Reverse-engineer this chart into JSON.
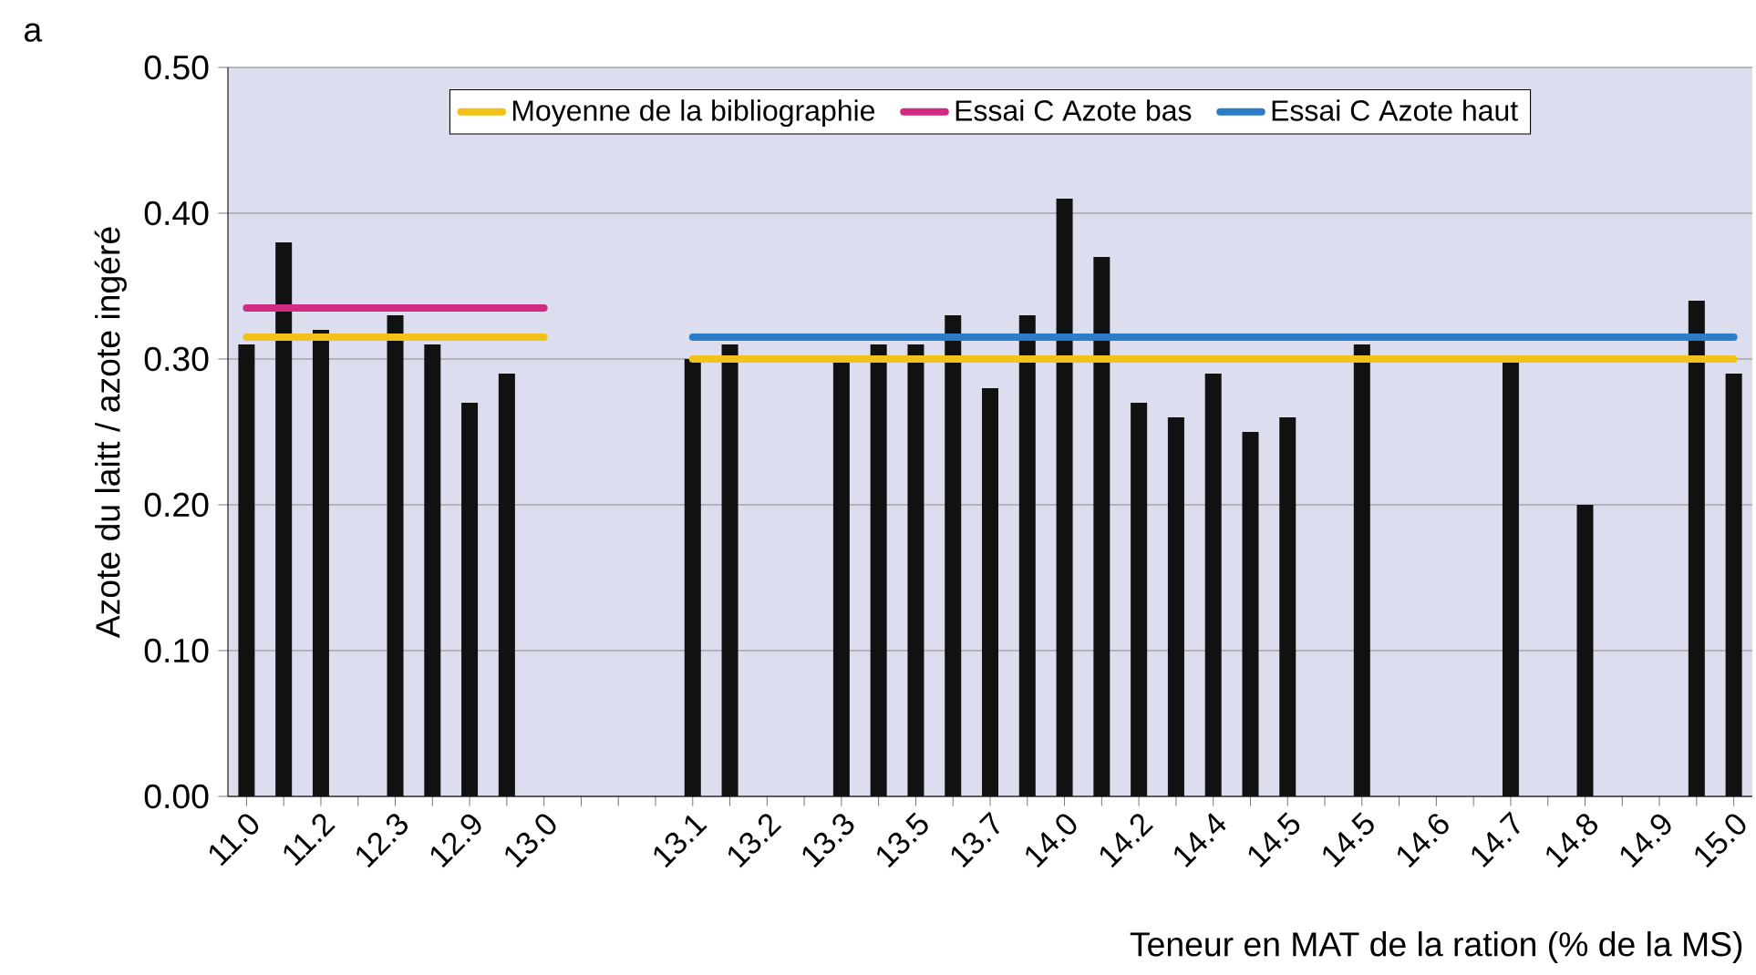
{
  "chart_data": {
    "type": "bar",
    "xlabel": "Teneur en MAT de la ration (% de la MS)",
    "ylabel": "Azote du laitt / azote ingéré",
    "annotations": [
      "a"
    ],
    "categories": [
      "11.0",
      null,
      "11.2",
      null,
      "12.3",
      null,
      "12.9",
      null,
      "13.0",
      null,
      null,
      null,
      "13.1",
      null,
      "13.2",
      null,
      "13.3",
      null,
      "13.5",
      null,
      "13.7",
      null,
      "14.0",
      null,
      "14.2",
      null,
      "14.4",
      null,
      "14.5",
      null,
      "14.5",
      null,
      "14.6",
      null,
      "14.7",
      null,
      "14.8",
      null,
      "14.9",
      null,
      "15.0"
    ],
    "series": [
      {
        "color": "#111111",
        "values": [
          0.31,
          0.38,
          0.32,
          null,
          0.33,
          0.31,
          0.27,
          0.29,
          null,
          null,
          null,
          null,
          0.3,
          0.31,
          null,
          null,
          0.3,
          0.31,
          0.31,
          0.33,
          0.28,
          0.33,
          0.41,
          0.37,
          0.27,
          0.26,
          0.29,
          0.25,
          0.26,
          null,
          0.31,
          null,
          null,
          null,
          0.3,
          null,
          0.2,
          null,
          null,
          0.34,
          0.29
        ]
      },
      {
        "type": "line",
        "name": "Moyenne de la bibliographie",
        "color": "#f2c21b",
        "values": [
          0.315,
          0.315,
          0.315,
          0.315,
          0.315,
          0.315,
          0.315,
          0.315,
          0.315,
          null,
          null,
          null,
          0.3,
          0.3,
          0.3,
          0.3,
          0.3,
          0.3,
          0.3,
          0.3,
          0.3,
          0.3,
          0.3,
          0.3,
          0.3,
          0.3,
          0.3,
          0.3,
          0.3,
          0.3,
          0.3,
          0.3,
          0.3,
          0.3,
          0.3,
          0.3,
          0.3,
          0.3,
          0.3,
          0.3,
          0.3
        ]
      },
      {
        "type": "line",
        "name": "Essai C Azote bas",
        "color": "#d12a82",
        "values": [
          0.335,
          0.335,
          0.335,
          0.335,
          0.335,
          0.335,
          0.335,
          0.335,
          0.335,
          null,
          null,
          null,
          null,
          null,
          null,
          null,
          null,
          null,
          null,
          null,
          null,
          null,
          null,
          null,
          null,
          null,
          null,
          null,
          null,
          null,
          null,
          null,
          null,
          null,
          null,
          null,
          null,
          null,
          null,
          null,
          null
        ]
      },
      {
        "type": "line",
        "name": "Essai C Azote haut",
        "color": "#2d7cc9",
        "values": [
          null,
          null,
          null,
          null,
          null,
          null,
          null,
          null,
          null,
          null,
          null,
          null,
          0.315,
          0.315,
          0.315,
          0.315,
          0.315,
          0.315,
          0.315,
          0.315,
          0.315,
          0.315,
          0.315,
          0.315,
          0.315,
          0.315,
          0.315,
          0.315,
          0.315,
          0.315,
          0.315,
          0.315,
          0.315,
          0.315,
          0.315,
          0.315,
          0.315,
          0.315,
          0.315,
          0.315,
          0.315
        ]
      }
    ],
    "ylim": [
      0,
      0.5
    ],
    "yticks": [
      {
        "value": 0,
        "label": "0.00"
      },
      {
        "value": 0.1,
        "label": "0.10"
      },
      {
        "value": 0.2,
        "label": "0.20"
      },
      {
        "value": 0.3,
        "label": "0.30"
      },
      {
        "value": 0.4,
        "label": "0.40"
      },
      {
        "value": 0.5,
        "label": "0.50"
      }
    ],
    "grid": "y",
    "legend": "top"
  }
}
